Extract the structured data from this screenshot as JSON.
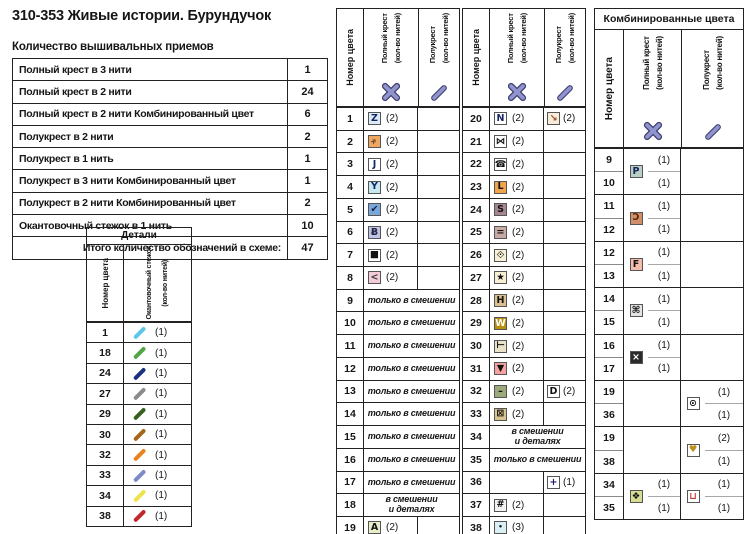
{
  "page_title": "310-353  Живые истории. Бурундучок",
  "summary": {
    "caption": "Количество вышивальных приемов",
    "rows": [
      {
        "label": "Полный крест в 3 нити",
        "value": "1"
      },
      {
        "label": "Полный крест в 2 нити",
        "value": "24"
      },
      {
        "label": "Полный крест в 2 нити Комбинированный цвет",
        "value": "6"
      },
      {
        "label": "Полукрест в 2 нити",
        "value": "2"
      },
      {
        "label": "Полукрест в 1 нить",
        "value": "1"
      },
      {
        "label": "Полукрест в 3 нити Комбинированный цвет",
        "value": "1"
      },
      {
        "label": "Полукрест в 2 нити Комбинированный цвет",
        "value": "2"
      },
      {
        "label": "Окантовочный стежок в 1 нить",
        "value": "10"
      },
      {
        "label": "Итого количество обозначений в схеме:",
        "value": "47",
        "total": true
      }
    ]
  },
  "details": {
    "title": "Детали",
    "col_num": "Номер цвета",
    "col_stitch": "Окантовочный стежок",
    "col_count": "(кол-во нитей)",
    "line_icon": "stitch-line-icon",
    "rows": [
      {
        "num": "1",
        "line_color": "#5ec7e8",
        "count": "(1)"
      },
      {
        "num": "18",
        "line_color": "#53a546",
        "count": "(1)"
      },
      {
        "num": "24",
        "line_color": "#1c2f80",
        "count": "(1)"
      },
      {
        "num": "27",
        "line_color": "#8b8b8b",
        "count": "(1)"
      },
      {
        "num": "29",
        "line_color": "#38611f",
        "count": "(1)"
      },
      {
        "num": "30",
        "line_color": "#a5661c",
        "count": "(1)"
      },
      {
        "num": "32",
        "line_color": "#ea831d",
        "count": "(1)"
      },
      {
        "num": "33",
        "line_color": "#7e89c8",
        "count": "(1)"
      },
      {
        "num": "34",
        "line_color": "#eee34d",
        "count": "(1)"
      },
      {
        "num": "38",
        "line_color": "#c1272d",
        "count": "(1)"
      }
    ]
  },
  "headers": {
    "num": "Номер цвета",
    "full": "Полный крест",
    "half": "Полукрест",
    "count": "(кол-во нитей)",
    "full_icon": "full-cross-icon",
    "half_icon": "half-cross-icon",
    "icon_color": "#9094ce",
    "icon_outline": "#3f3f6e"
  },
  "main_tables": [
    {
      "rows": [
        {
          "num": "1",
          "full": {
            "sym": "Z",
            "bg": "#dcebf7",
            "fg": "#14245f",
            "count": "(2)"
          }
        },
        {
          "num": "2",
          "full": {
            "sym": "»",
            "rot": true,
            "bg": "#f0a75f",
            "fg": "#4a3a2a",
            "count": "(2)"
          }
        },
        {
          "num": "3",
          "full": {
            "sym": "J",
            "bg": "#ffffff",
            "fg": "#14245f",
            "count": "(2)"
          }
        },
        {
          "num": "4",
          "full": {
            "sym": "Y",
            "bg": "#c6e9f2",
            "fg": "#14245f",
            "count": "(2)"
          }
        },
        {
          "num": "5",
          "full": {
            "sym": "✔",
            "bg": "#79a8d9",
            "fg": "#0e1e4d",
            "count": "(2)"
          }
        },
        {
          "num": "6",
          "full": {
            "sym": "Ƀ",
            "bg": "#bfc3e6",
            "fg": "#23233f",
            "count": "(2)"
          }
        },
        {
          "num": "7",
          "full": {
            "sym": "■",
            "bg": "#ffffff",
            "fg": "#111111",
            "count": "(2)"
          }
        },
        {
          "num": "8",
          "full": {
            "sym": "<",
            "bg": "#f2ccd8",
            "fg": "#3a3a3a",
            "count": "(2)"
          }
        },
        {
          "num": "9",
          "span": [
            "только в смешении"
          ]
        },
        {
          "num": "10",
          "span": [
            "только в смешении"
          ]
        },
        {
          "num": "11",
          "span": [
            "только в смешении"
          ]
        },
        {
          "num": "12",
          "span": [
            "только в смешении"
          ]
        },
        {
          "num": "13",
          "span": [
            "только в смешении"
          ]
        },
        {
          "num": "14",
          "span": [
            "только в смешении"
          ]
        },
        {
          "num": "15",
          "span": [
            "только в смешении"
          ]
        },
        {
          "num": "16",
          "span": [
            "только в смешении"
          ]
        },
        {
          "num": "17",
          "span": [
            "только в смешении"
          ]
        },
        {
          "num": "18",
          "span": [
            "в смешении",
            "и деталях"
          ]
        },
        {
          "num": "19",
          "full": {
            "sym": "A",
            "bg": "#e9edca",
            "fg": "#111111",
            "count": "(2)"
          }
        }
      ]
    },
    {
      "rows": [
        {
          "num": "20",
          "full": {
            "sym": "N",
            "bg": "#ffffff",
            "fg": "#14245f",
            "count": "(2)"
          },
          "half": {
            "sym": "↘",
            "bg": "#f7ecd9",
            "fg": "#8a4a15",
            "count": "(2)"
          }
        },
        {
          "num": "21",
          "full": {
            "sym": "⋈",
            "bg": "#ffffff",
            "fg": "#111111",
            "count": "(2)"
          }
        },
        {
          "num": "22",
          "full": {
            "sym": "☎",
            "bg": "#ffffff",
            "fg": "#111111",
            "count": "(2)"
          }
        },
        {
          "num": "23",
          "full": {
            "sym": "L",
            "bg": "#f0a44c",
            "fg": "#111111",
            "count": "(2)"
          }
        },
        {
          "num": "24",
          "full": {
            "sym": "S",
            "bg": "#a5858e",
            "fg": "#111111",
            "count": "(2)"
          }
        },
        {
          "num": "25",
          "full": {
            "sym": "=",
            "bg": "#c9a9a4",
            "fg": "#111111",
            "count": "(2)"
          }
        },
        {
          "num": "26",
          "full": {
            "sym": "◇",
            "dot": true,
            "bg": "#f7f0d6",
            "fg": "#111111",
            "count": "(2)"
          }
        },
        {
          "num": "27",
          "full": {
            "sym": "★",
            "bg": "#f7f0d6",
            "fg": "#111111",
            "count": "(2)"
          }
        },
        {
          "num": "28",
          "full": {
            "sym": "H",
            "bg": "#d9c08e",
            "fg": "#111111",
            "count": "(2)"
          }
        },
        {
          "num": "29",
          "full": {
            "sym": "W",
            "bg": "#bb8f0e",
            "fg": "#ffffff",
            "count": "(2)"
          }
        },
        {
          "num": "30",
          "full": {
            "sym": "⊢",
            "bg": "#e9e2c8",
            "fg": "#111111",
            "count": "(2)"
          }
        },
        {
          "num": "31",
          "full": {
            "sym": "▼",
            "bg": "#f4a2a2",
            "fg": "#111111",
            "count": "(2)"
          }
        },
        {
          "num": "32",
          "full": {
            "sym": "–",
            "bg": "#9da97a",
            "fg": "#111111",
            "count": "(2)"
          },
          "half": {
            "sym": "D",
            "bg": "#ffffff",
            "fg": "#111111",
            "count": "(2)"
          }
        },
        {
          "num": "33",
          "full": {
            "sym": "⊠",
            "bg": "#d9c491",
            "fg": "#111111",
            "count": "(2)"
          }
        },
        {
          "num": "34",
          "span": [
            "в смешении",
            "и деталях"
          ]
        },
        {
          "num": "35",
          "span": [
            "только в смешении"
          ]
        },
        {
          "num": "36",
          "half": {
            "sym": "+",
            "bg": "#ffffff",
            "fg": "#1a1a6e",
            "count": "(1)"
          }
        },
        {
          "num": "37",
          "full": {
            "sym": "#",
            "bg": "#f2f2f2",
            "fg": "#111111",
            "count": "(2)"
          }
        },
        {
          "num": "38",
          "full": {
            "sym": "•",
            "small": true,
            "bg": "#daeff3",
            "fg": "#111111",
            "count": "(3)"
          }
        }
      ]
    }
  ],
  "combined": {
    "title": "Комбинированные цвета",
    "groups": [
      {
        "nums": [
          "9",
          "10"
        ],
        "full": {
          "sym": "P",
          "bg": "#b9cfc4",
          "fg": "#14245f",
          "counts": [
            "(1)",
            "(1)"
          ]
        }
      },
      {
        "nums": [
          "11",
          "12"
        ],
        "full": {
          "sym": "Ɔ",
          "bg": "#d2906a",
          "fg": "#57280a",
          "counts": [
            "(1)",
            "(1)"
          ]
        }
      },
      {
        "nums": [
          "12",
          "13"
        ],
        "full": {
          "sym": "F",
          "bg": "#f6bcab",
          "fg": "#111111",
          "counts": [
            "(1)",
            "(1)"
          ]
        }
      },
      {
        "nums": [
          "14",
          "15"
        ],
        "full": {
          "sym": "⌘",
          "bg": "#e3e3e3",
          "fg": "#111111",
          "counts": [
            "(1)",
            "(1)"
          ]
        }
      },
      {
        "nums": [
          "16",
          "17"
        ],
        "full": {
          "sym": "×",
          "bg": "#2b2b2b",
          "fg": "#ffffff",
          "counts": [
            "(1)",
            "(1)"
          ]
        }
      },
      {
        "nums": [
          "19",
          "36"
        ],
        "half": {
          "sym": "⊙",
          "bg": "#ffffff",
          "fg": "#111111",
          "counts": [
            "(1)",
            "(1)"
          ]
        }
      },
      {
        "nums": [
          "19",
          "38"
        ],
        "half": {
          "sym": "♥",
          "bg": "#ffffff",
          "fg": "#bf8e1c",
          "counts": [
            "(2)",
            "(1)"
          ]
        }
      },
      {
        "nums": [
          "34",
          "35"
        ],
        "full": {
          "sym": "❖",
          "bg": "#d7dc90",
          "fg": "#111111",
          "counts": [
            "(1)",
            "(1)"
          ]
        },
        "half": {
          "sym": "⊔",
          "bg": "#ffffff",
          "fg": "#c0392b",
          "counts": [
            "(1)",
            "(1)"
          ]
        }
      }
    ]
  }
}
